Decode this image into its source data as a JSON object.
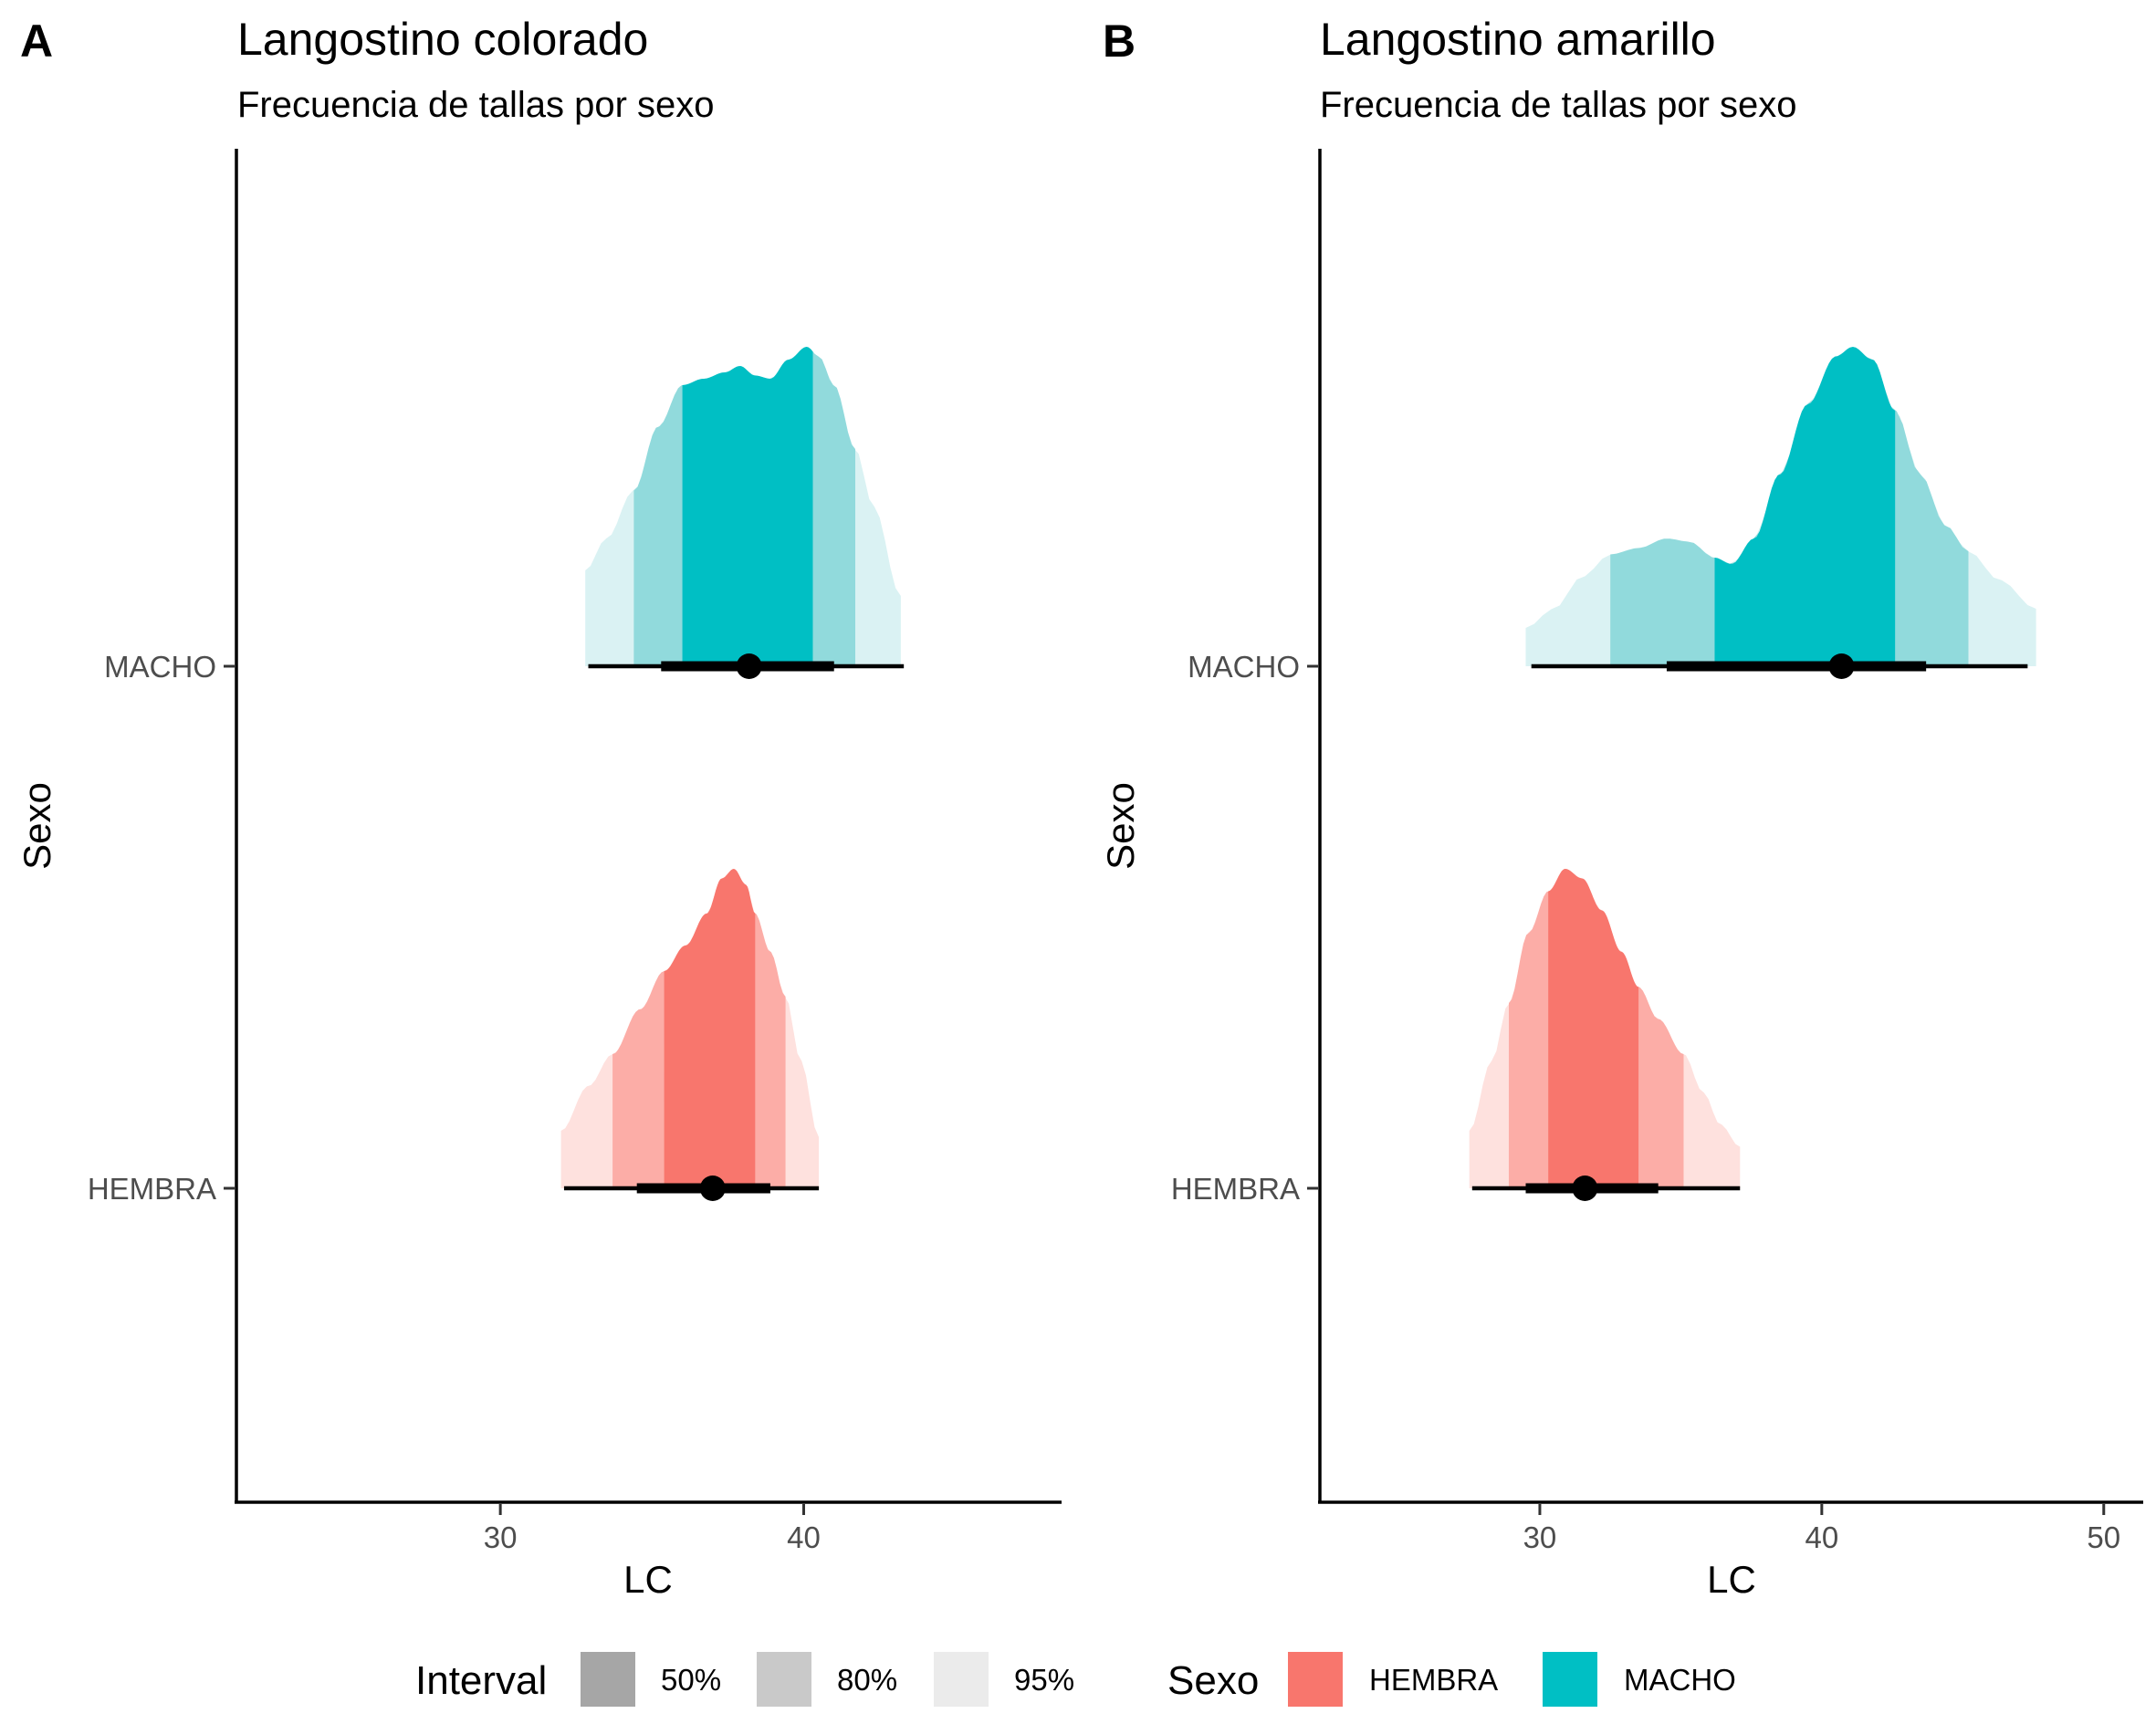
{
  "chart_data": [
    {
      "type": "ridgeline-interval",
      "tag": "A",
      "title": "Langostino colorado",
      "subtitle": "Frecuencia de tallas por sexo",
      "xlabel": "LC",
      "ylabel": "Sexo",
      "xlim": [
        21.3,
        48.5
      ],
      "xticks": [
        30,
        40
      ],
      "grid": false,
      "categories": [
        "HEMBRA",
        "MACHO"
      ],
      "series": [
        {
          "name": "MACHO",
          "color": "#00BFC4",
          "point": 38.2,
          "interval_66": [
            35.3,
            41.0
          ],
          "interval_95": [
            32.9,
            43.3
          ],
          "shade_50": [
            36.0,
            40.3
          ],
          "shade_80": [
            34.4,
            41.7
          ],
          "shade_95": [
            32.8,
            43.2
          ],
          "density": [
            [
              32.8,
              0.3
            ],
            [
              33.5,
              0.4
            ],
            [
              34.4,
              0.55
            ],
            [
              35.2,
              0.75
            ],
            [
              36.0,
              0.88
            ],
            [
              36.7,
              0.9
            ],
            [
              37.4,
              0.92
            ],
            [
              37.9,
              0.94
            ],
            [
              38.4,
              0.91
            ],
            [
              38.9,
              0.9
            ],
            [
              39.5,
              0.96
            ],
            [
              40.1,
              1.0
            ],
            [
              40.5,
              0.97
            ],
            [
              41.0,
              0.88
            ],
            [
              41.7,
              0.68
            ],
            [
              42.3,
              0.5
            ],
            [
              43.2,
              0.22
            ]
          ]
        },
        {
          "name": "HEMBRA",
          "color": "#F8766D",
          "point": 37.0,
          "interval_66": [
            34.5,
            38.9
          ],
          "interval_95": [
            32.1,
            40.5
          ],
          "shade_50": [
            35.4,
            38.4
          ],
          "shade_80": [
            33.7,
            39.4
          ],
          "shade_95": [
            32.0,
            40.5
          ],
          "density": [
            [
              32.0,
              0.18
            ],
            [
              32.9,
              0.32
            ],
            [
              33.7,
              0.42
            ],
            [
              34.6,
              0.56
            ],
            [
              35.4,
              0.68
            ],
            [
              36.1,
              0.76
            ],
            [
              36.8,
              0.86
            ],
            [
              37.3,
              0.97
            ],
            [
              37.7,
              1.0
            ],
            [
              38.1,
              0.95
            ],
            [
              38.4,
              0.86
            ],
            [
              38.9,
              0.74
            ],
            [
              39.4,
              0.6
            ],
            [
              39.9,
              0.4
            ],
            [
              40.5,
              0.16
            ]
          ]
        }
      ]
    },
    {
      "type": "ridgeline-interval",
      "tag": "B",
      "title": "Langostino amarillo",
      "subtitle": "Frecuencia de tallas por sexo",
      "xlabel": "LC",
      "ylabel": "Sexo",
      "xlim": [
        22.2,
        51.4
      ],
      "xticks": [
        30,
        40,
        50
      ],
      "grid": false,
      "categories": [
        "HEMBRA",
        "MACHO"
      ],
      "series": [
        {
          "name": "MACHO",
          "color": "#00BFC4",
          "point": 40.7,
          "interval_66": [
            34.5,
            43.7
          ],
          "interval_95": [
            29.7,
            47.3
          ],
          "shade_50": [
            36.2,
            42.6
          ],
          "shade_80": [
            32.5,
            45.2
          ],
          "shade_95": [
            29.5,
            47.6
          ],
          "density": [
            [
              29.5,
              0.12
            ],
            [
              30.5,
              0.18
            ],
            [
              31.5,
              0.28
            ],
            [
              32.5,
              0.35
            ],
            [
              33.5,
              0.37
            ],
            [
              34.5,
              0.4
            ],
            [
              35.3,
              0.39
            ],
            [
              36.2,
              0.34
            ],
            [
              36.8,
              0.32
            ],
            [
              37.6,
              0.4
            ],
            [
              38.5,
              0.6
            ],
            [
              39.5,
              0.82
            ],
            [
              40.5,
              0.97
            ],
            [
              41.1,
              1.0
            ],
            [
              41.8,
              0.96
            ],
            [
              42.6,
              0.8
            ],
            [
              43.5,
              0.6
            ],
            [
              44.4,
              0.44
            ],
            [
              45.2,
              0.36
            ],
            [
              46.3,
              0.27
            ],
            [
              47.6,
              0.18
            ]
          ]
        },
        {
          "name": "HEMBRA",
          "color": "#F8766D",
          "point": 31.6,
          "interval_66": [
            29.5,
            34.2
          ],
          "interval_95": [
            27.6,
            37.1
          ],
          "shade_50": [
            30.3,
            33.5
          ],
          "shade_80": [
            28.9,
            35.1
          ],
          "shade_95": [
            27.5,
            37.1
          ],
          "density": [
            [
              27.5,
              0.18
            ],
            [
              28.3,
              0.4
            ],
            [
              28.9,
              0.58
            ],
            [
              29.6,
              0.8
            ],
            [
              30.3,
              0.93
            ],
            [
              30.9,
              1.0
            ],
            [
              31.5,
              0.97
            ],
            [
              32.2,
              0.87
            ],
            [
              32.9,
              0.74
            ],
            [
              33.5,
              0.63
            ],
            [
              34.2,
              0.53
            ],
            [
              35.1,
              0.42
            ],
            [
              35.8,
              0.3
            ],
            [
              36.4,
              0.2
            ],
            [
              37.1,
              0.13
            ]
          ]
        }
      ]
    }
  ],
  "legend": {
    "interval_title": "Interval",
    "interval_items": [
      {
        "label": "50%",
        "color": "#A6A6A6"
      },
      {
        "label": "80%",
        "color": "#C9C9C9"
      },
      {
        "label": "95%",
        "color": "#EBEBEB"
      }
    ],
    "sexo_title": "Sexo",
    "sexo_items": [
      {
        "label": "HEMBRA",
        "color": "#F8766D"
      },
      {
        "label": "MACHO",
        "color": "#00BFC4"
      }
    ],
    "position": "bottom"
  },
  "shades": {
    "MACHO": {
      "s50": "#00BFC4",
      "s80": "#91DADC",
      "s95": "#DAF2F3"
    },
    "HEMBRA": {
      "s50": "#F8766D",
      "s80": "#FCADA7",
      "s95": "#FEE1DE"
    }
  }
}
